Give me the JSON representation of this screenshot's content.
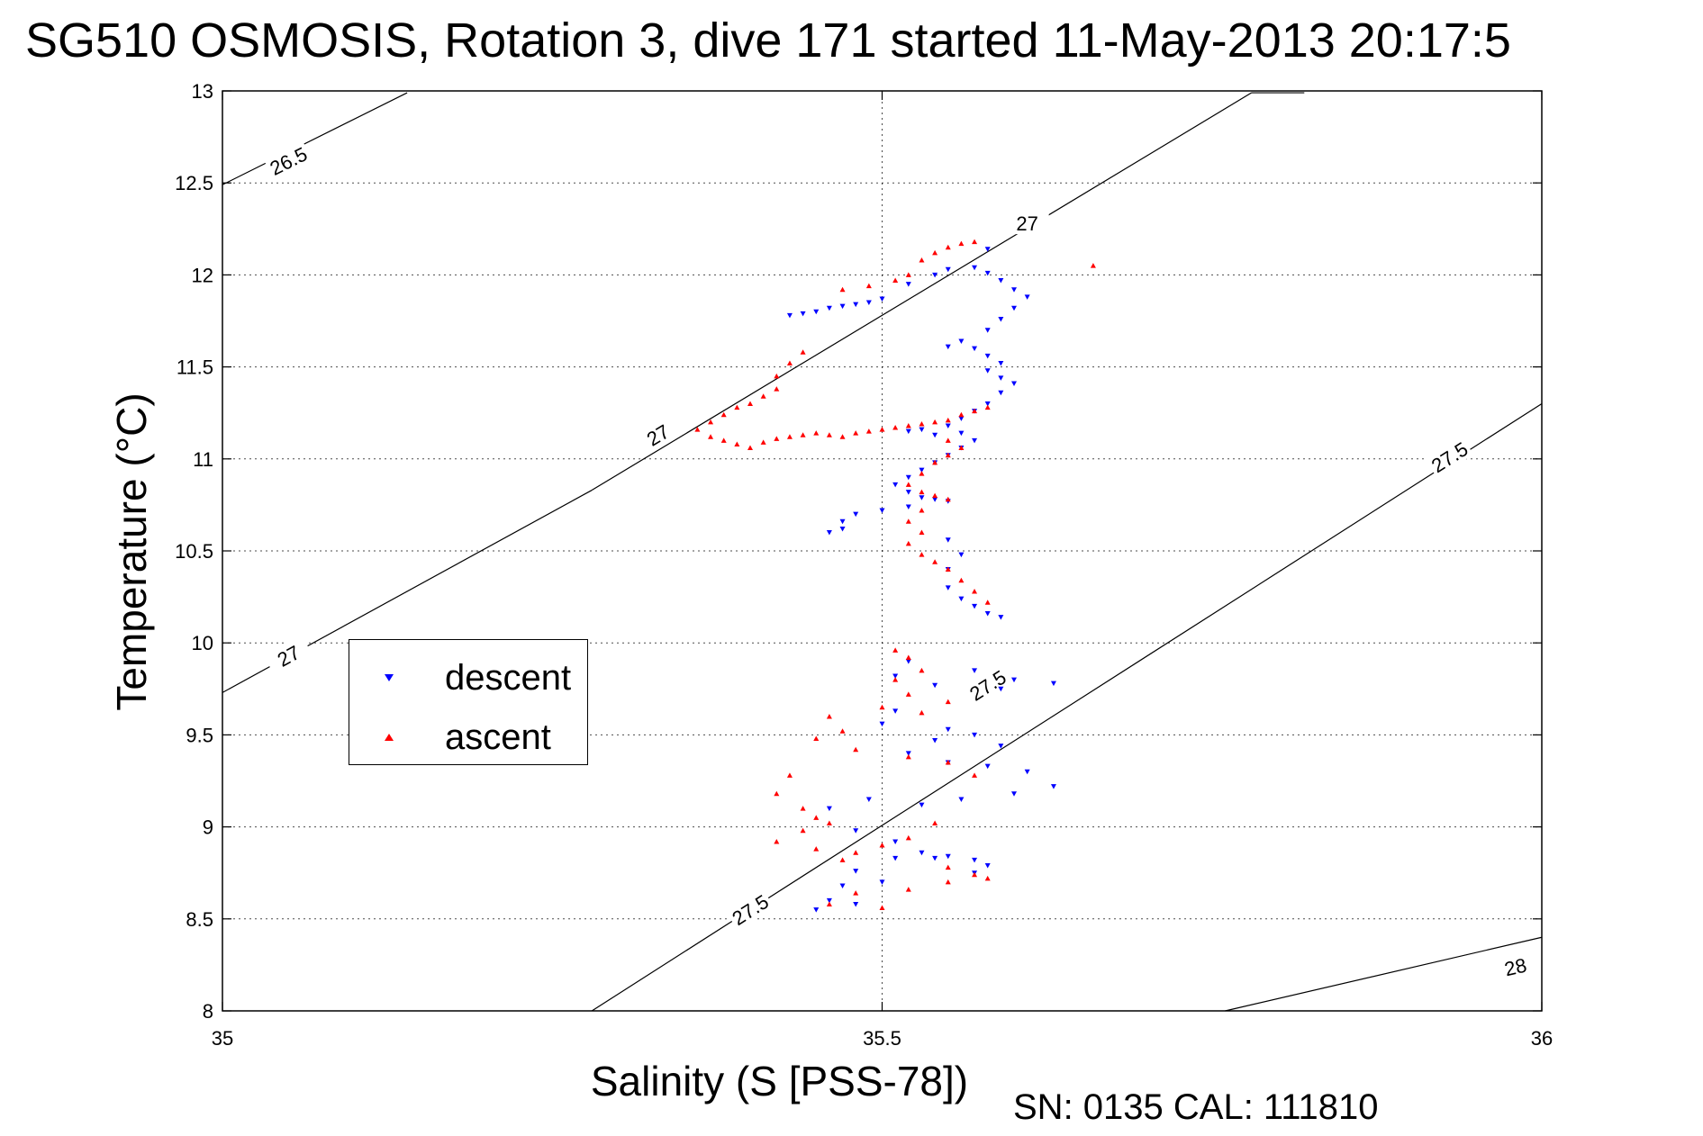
{
  "chart_data": {
    "type": "scatter",
    "title": "SG510 OSMOSIS, Rotation 3, dive 171 started 11-May-2013 20:17:5",
    "xlabel": "Salinity (S [PSS-78])",
    "ylabel": "Temperature (°C)",
    "footnote": "SN: 0135  CAL: 111810",
    "xlim": [
      35,
      36
    ],
    "ylim": [
      8,
      13
    ],
    "xticks": [
      "35",
      "35.5",
      "36"
    ],
    "yticks": [
      "8",
      "8.5",
      "9",
      "9.5",
      "10",
      "10.5",
      "11",
      "11.5",
      "12",
      "12.5",
      "13"
    ],
    "grid": true,
    "legend_position": "left-center",
    "density_contours": [
      {
        "label": "26.5",
        "x": [
          35.0,
          35.14
        ],
        "y": [
          12.49,
          12.99
        ],
        "label_x": 35.05,
        "label_y": 12.62
      },
      {
        "label": "27",
        "x": [
          35.0,
          35.28
        ],
        "y": [
          9.73,
          10.83
        ],
        "label_x": 35.05,
        "label_y": 9.93
      },
      {
        "label": "27",
        "x": [
          35.28,
          35.78
        ],
        "y": [
          10.83,
          12.99
        ],
        "label_x": 35.33,
        "label_y": 11.13
      },
      {
        "label": "27",
        "x": [
          35.78,
          35.82
        ],
        "y": [
          12.99,
          12.99
        ],
        "label_x": 35.61,
        "label_y": 12.28
      },
      {
        "label": "27.5",
        "x": [
          35.28,
          36.0
        ],
        "y": [
          8.0,
          11.3
        ],
        "label_x": 35.4,
        "label_y": 8.55
      },
      {
        "label": "27.5",
        "x": [
          35.28,
          36.0
        ],
        "y": [
          8.0,
          11.3
        ],
        "label_x": 35.58,
        "label_y": 9.77
      },
      {
        "label": "27.5",
        "x": [
          35.28,
          36.0
        ],
        "y": [
          8.0,
          11.3
        ],
        "label_x": 35.93,
        "label_y": 11.01
      },
      {
        "label": "28",
        "x": [
          35.76,
          36.0
        ],
        "y": [
          8.0,
          8.4
        ],
        "label_x": 35.98,
        "label_y": 8.24
      }
    ],
    "series": [
      {
        "name": "descent",
        "color": "#0000ff",
        "marker": "triangle-down",
        "points": [
          [
            35.43,
            11.78
          ],
          [
            35.44,
            11.79
          ],
          [
            35.45,
            11.8
          ],
          [
            35.46,
            11.82
          ],
          [
            35.47,
            11.83
          ],
          [
            35.48,
            11.84
          ],
          [
            35.49,
            11.85
          ],
          [
            35.5,
            11.87
          ],
          [
            35.52,
            11.95
          ],
          [
            35.54,
            12.0
          ],
          [
            35.55,
            12.03
          ],
          [
            35.57,
            12.04
          ],
          [
            35.58,
            12.01
          ],
          [
            35.59,
            11.97
          ],
          [
            35.6,
            11.92
          ],
          [
            35.61,
            11.88
          ],
          [
            35.6,
            11.82
          ],
          [
            35.59,
            11.76
          ],
          [
            35.58,
            11.7
          ],
          [
            35.56,
            11.64
          ],
          [
            35.55,
            11.61
          ],
          [
            35.57,
            11.6
          ],
          [
            35.58,
            11.56
          ],
          [
            35.59,
            11.52
          ],
          [
            35.58,
            11.48
          ],
          [
            35.59,
            11.44
          ],
          [
            35.6,
            11.41
          ],
          [
            35.59,
            11.36
          ],
          [
            35.58,
            11.3
          ],
          [
            35.57,
            11.26
          ],
          [
            35.56,
            11.22
          ],
          [
            35.55,
            11.18
          ],
          [
            35.56,
            11.14
          ],
          [
            35.57,
            11.1
          ],
          [
            35.56,
            11.06
          ],
          [
            35.55,
            11.02
          ],
          [
            35.54,
            10.98
          ],
          [
            35.53,
            10.94
          ],
          [
            35.52,
            10.9
          ],
          [
            35.51,
            10.86
          ],
          [
            35.52,
            10.82
          ],
          [
            35.53,
            10.79
          ],
          [
            35.54,
            10.78
          ],
          [
            35.55,
            10.77
          ],
          [
            35.52,
            10.74
          ],
          [
            35.5,
            10.72
          ],
          [
            35.48,
            10.7
          ],
          [
            35.47,
            10.66
          ],
          [
            35.47,
            10.62
          ],
          [
            35.46,
            10.6
          ],
          [
            35.55,
            10.56
          ],
          [
            35.56,
            10.48
          ],
          [
            35.55,
            10.4
          ],
          [
            35.55,
            10.3
          ],
          [
            35.56,
            10.24
          ],
          [
            35.57,
            10.2
          ],
          [
            35.58,
            10.16
          ],
          [
            35.59,
            10.14
          ],
          [
            35.52,
            11.15
          ],
          [
            35.53,
            11.16
          ],
          [
            35.54,
            11.13
          ],
          [
            35.58,
            12.14
          ],
          [
            35.52,
            9.9
          ],
          [
            35.51,
            9.82
          ],
          [
            35.54,
            9.77
          ],
          [
            35.57,
            9.85
          ],
          [
            35.6,
            9.8
          ],
          [
            35.63,
            9.78
          ],
          [
            35.59,
            9.75
          ],
          [
            35.51,
            9.63
          ],
          [
            35.5,
            9.56
          ],
          [
            35.54,
            9.47
          ],
          [
            35.55,
            9.53
          ],
          [
            35.57,
            9.5
          ],
          [
            35.59,
            9.44
          ],
          [
            35.52,
            9.4
          ],
          [
            35.55,
            9.35
          ],
          [
            35.58,
            9.33
          ],
          [
            35.61,
            9.3
          ],
          [
            35.63,
            9.22
          ],
          [
            35.6,
            9.18
          ],
          [
            35.56,
            9.15
          ],
          [
            35.53,
            9.12
          ],
          [
            35.49,
            9.15
          ],
          [
            35.46,
            9.1
          ],
          [
            35.48,
            8.98
          ],
          [
            35.51,
            8.92
          ],
          [
            35.53,
            8.86
          ],
          [
            35.55,
            8.84
          ],
          [
            35.57,
            8.82
          ],
          [
            35.58,
            8.79
          ],
          [
            35.57,
            8.75
          ],
          [
            35.54,
            8.83
          ],
          [
            35.51,
            8.83
          ],
          [
            35.48,
            8.76
          ],
          [
            35.47,
            8.68
          ],
          [
            35.46,
            8.6
          ],
          [
            35.45,
            8.55
          ],
          [
            35.48,
            8.58
          ],
          [
            35.5,
            8.7
          ]
        ]
      },
      {
        "name": "ascent",
        "color": "#ff0000",
        "marker": "triangle-up",
        "points": [
          [
            35.44,
            11.58
          ],
          [
            35.43,
            11.52
          ],
          [
            35.42,
            11.45
          ],
          [
            35.42,
            11.38
          ],
          [
            35.41,
            11.34
          ],
          [
            35.4,
            11.3
          ],
          [
            35.39,
            11.28
          ],
          [
            35.38,
            11.24
          ],
          [
            35.37,
            11.2
          ],
          [
            35.36,
            11.16
          ],
          [
            35.37,
            11.12
          ],
          [
            35.38,
            11.1
          ],
          [
            35.39,
            11.08
          ],
          [
            35.4,
            11.06
          ],
          [
            35.41,
            11.09
          ],
          [
            35.42,
            11.11
          ],
          [
            35.43,
            11.12
          ],
          [
            35.44,
            11.13
          ],
          [
            35.45,
            11.14
          ],
          [
            35.46,
            11.13
          ],
          [
            35.47,
            11.12
          ],
          [
            35.48,
            11.14
          ],
          [
            35.49,
            11.15
          ],
          [
            35.5,
            11.16
          ],
          [
            35.51,
            11.17
          ],
          [
            35.52,
            11.18
          ],
          [
            35.53,
            11.19
          ],
          [
            35.54,
            11.2
          ],
          [
            35.55,
            11.21
          ],
          [
            35.56,
            11.24
          ],
          [
            35.57,
            11.26
          ],
          [
            35.58,
            11.28
          ],
          [
            35.55,
            11.1
          ],
          [
            35.56,
            11.06
          ],
          [
            35.55,
            11.02
          ],
          [
            35.54,
            10.98
          ],
          [
            35.53,
            10.92
          ],
          [
            35.52,
            10.86
          ],
          [
            35.53,
            10.82
          ],
          [
            35.54,
            10.8
          ],
          [
            35.55,
            10.78
          ],
          [
            35.53,
            10.72
          ],
          [
            35.52,
            10.66
          ],
          [
            35.53,
            10.6
          ],
          [
            35.52,
            10.54
          ],
          [
            35.53,
            10.48
          ],
          [
            35.54,
            10.44
          ],
          [
            35.55,
            10.4
          ],
          [
            35.56,
            10.34
          ],
          [
            35.57,
            10.28
          ],
          [
            35.58,
            10.22
          ],
          [
            35.47,
            11.92
          ],
          [
            35.49,
            11.94
          ],
          [
            35.51,
            11.97
          ],
          [
            35.52,
            12.0
          ],
          [
            35.53,
            12.08
          ],
          [
            35.54,
            12.12
          ],
          [
            35.55,
            12.15
          ],
          [
            35.56,
            12.17
          ],
          [
            35.57,
            12.18
          ],
          [
            35.66,
            12.05
          ],
          [
            35.51,
            9.96
          ],
          [
            35.52,
            9.92
          ],
          [
            35.53,
            9.85
          ],
          [
            35.51,
            9.8
          ],
          [
            35.52,
            9.72
          ],
          [
            35.55,
            9.68
          ],
          [
            35.53,
            9.62
          ],
          [
            35.5,
            9.65
          ],
          [
            35.46,
            9.6
          ],
          [
            35.47,
            9.52
          ],
          [
            35.45,
            9.48
          ],
          [
            35.48,
            9.42
          ],
          [
            35.52,
            9.38
          ],
          [
            35.55,
            9.35
          ],
          [
            35.57,
            9.28
          ],
          [
            35.43,
            9.28
          ],
          [
            35.42,
            9.18
          ],
          [
            35.44,
            9.1
          ],
          [
            35.46,
            9.02
          ],
          [
            35.44,
            8.98
          ],
          [
            35.42,
            8.92
          ],
          [
            35.45,
            8.88
          ],
          [
            35.48,
            8.86
          ],
          [
            35.5,
            8.9
          ],
          [
            35.52,
            8.94
          ],
          [
            35.55,
            8.78
          ],
          [
            35.57,
            8.74
          ],
          [
            35.55,
            8.7
          ],
          [
            35.58,
            8.72
          ],
          [
            35.52,
            8.66
          ],
          [
            35.48,
            8.64
          ],
          [
            35.46,
            8.58
          ],
          [
            35.5,
            8.56
          ],
          [
            35.45,
            9.05
          ],
          [
            35.47,
            8.82
          ],
          [
            35.54,
            9.02
          ]
        ]
      }
    ]
  }
}
